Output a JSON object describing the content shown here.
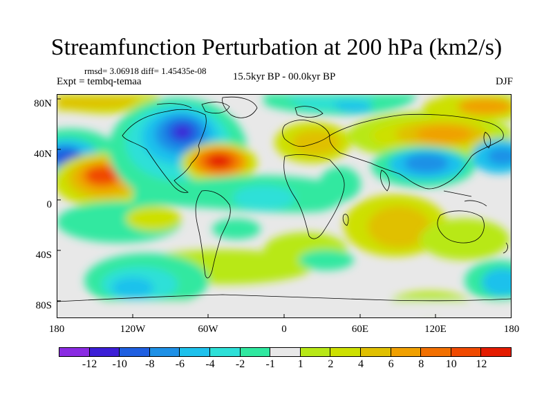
{
  "title": "Streamfunction Perturbation at 200 hPa (km2/s)",
  "stats": "rmsd= 3.06918 diff= 1.45435e-08",
  "expt": "Expt = tembq-temaa",
  "period": "15.5kyr BP - 00.0kyr BP",
  "season": "DJF",
  "lat_labels": [
    "80N",
    "40N",
    "0",
    "40S",
    "80S"
  ],
  "lon_labels": [
    "180",
    "120W",
    "60W",
    "0",
    "60E",
    "120E",
    "180"
  ],
  "colorbar": {
    "colors": [
      "#8a2be2",
      "#3c1fd6",
      "#1f5fe0",
      "#1e90e6",
      "#1ec1ec",
      "#2ee0d8",
      "#30e8a0",
      "#e8e8e8",
      "#b8e817",
      "#cde000",
      "#e0c000",
      "#f0a000",
      "#f27000",
      "#f04a00",
      "#e41c00"
    ],
    "labels": [
      "-12",
      "-10",
      "-8",
      "-6",
      "-4",
      "-2",
      "-1",
      "1",
      "2",
      "4",
      "6",
      "8",
      "10",
      "12"
    ]
  }
}
